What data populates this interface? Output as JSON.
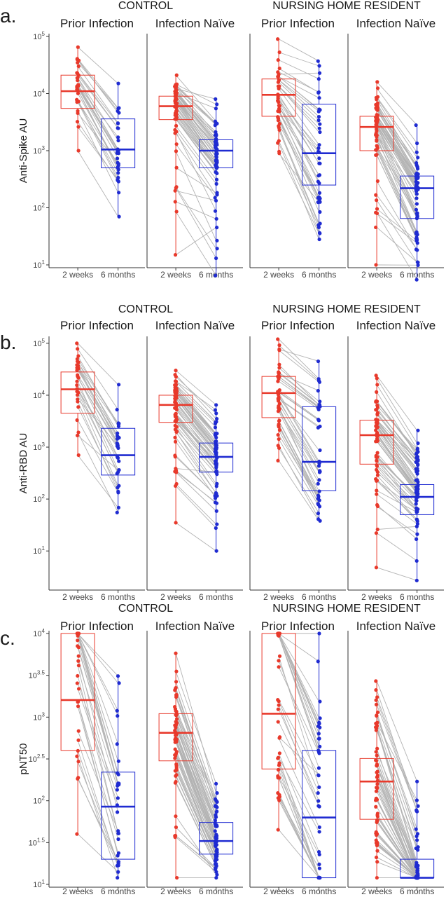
{
  "chart_data": [
    {
      "type": "box-dot-paired",
      "panel_label": "a.",
      "ylabel": "Anti-Spike AU",
      "yscale": "log10",
      "ylim": [
        10,
        100000
      ],
      "yticks": [
        "10^1",
        "10^2",
        "10^3",
        "10^4",
        "10^5"
      ],
      "group_labels": [
        "CONTROL",
        "NURSING HOME RESIDENT"
      ],
      "facet_labels": [
        "Prior Infection",
        "Infection Naïve",
        "Prior Infection",
        "Infection Naïve"
      ],
      "x_categories": [
        "2 weeks",
        "6 months"
      ],
      "colors": {
        "2 weeks": "#e8392b",
        "6 months": "#1f2bd1",
        "lines": "#b3b3b3"
      },
      "facets": [
        {
          "group": "CONTROL",
          "facet": "Prior Infection",
          "week2": {
            "median": 11000,
            "q1": 5500,
            "q3": 21000,
            "min": 1000,
            "max": 65000,
            "n": 30
          },
          "month6": {
            "median": 1050,
            "q1": 500,
            "q3": 3600,
            "min": 70,
            "max": 15000,
            "n": 30
          }
        },
        {
          "group": "CONTROL",
          "facet": "Infection Naïve",
          "week2": {
            "median": 6000,
            "q1": 3500,
            "q3": 9000,
            "min": 15,
            "max": 21000,
            "n": 60
          },
          "month6": {
            "median": 1000,
            "q1": 500,
            "q3": 1550,
            "min": 6.5,
            "max": 8000,
            "n": 60
          }
        },
        {
          "group": "NURSING HOME RESIDENT",
          "facet": "Prior Infection",
          "week2": {
            "median": 9500,
            "q1": 4000,
            "q3": 18000,
            "min": 900,
            "max": 90000,
            "n": 40
          },
          "month6": {
            "median": 900,
            "q1": 250,
            "q3": 6500,
            "min": 28,
            "max": 37000,
            "n": 40
          }
        },
        {
          "group": "NURSING HOME RESIDENT",
          "facet": "Infection Naïve",
          "week2": {
            "median": 2600,
            "q1": 1000,
            "q3": 4000,
            "min": 10,
            "max": 16000,
            "n": 60
          },
          "month6": {
            "median": 220,
            "q1": 65,
            "q3": 360,
            "min": 5.5,
            "max": 2800,
            "n": 60
          }
        }
      ]
    },
    {
      "type": "box-dot-paired",
      "panel_label": "b.",
      "ylabel": "Anti-RBD AU",
      "yscale": "log10",
      "ylim": [
        2,
        120000
      ],
      "yticks": [
        "10^1",
        "10^2",
        "10^3",
        "10^4",
        "10^5"
      ],
      "group_labels": [
        "CONTROL",
        "NURSING HOME RESIDENT"
      ],
      "facet_labels": [
        "Prior Infection",
        "Infection Naïve",
        "Prior Infection",
        "Infection Naïve"
      ],
      "x_categories": [
        "2 weeks",
        "6 months"
      ],
      "colors": {
        "2 weeks": "#e8392b",
        "6 months": "#1f2bd1",
        "lines": "#b3b3b3"
      },
      "facets": [
        {
          "group": "CONTROL",
          "facet": "Prior Infection",
          "week2": {
            "median": 13000,
            "q1": 4500,
            "q3": 28000,
            "min": 700,
            "max": 100000,
            "n": 30
          },
          "month6": {
            "median": 700,
            "q1": 290,
            "q3": 2300,
            "min": 55,
            "max": 16000,
            "n": 30
          }
        },
        {
          "group": "CONTROL",
          "facet": "Infection Naïve",
          "week2": {
            "median": 6500,
            "q1": 3000,
            "q3": 10000,
            "min": 35,
            "max": 30000,
            "n": 60
          },
          "month6": {
            "median": 650,
            "q1": 330,
            "q3": 1200,
            "min": 10,
            "max": 6500,
            "n": 60
          }
        },
        {
          "group": "NURSING HOME RESIDENT",
          "facet": "Prior Infection",
          "week2": {
            "median": 11000,
            "q1": 3700,
            "q3": 23000,
            "min": 550,
            "max": 120000,
            "n": 40
          },
          "month6": {
            "median": 520,
            "q1": 145,
            "q3": 6000,
            "min": 38,
            "max": 45000,
            "n": 40
          }
        },
        {
          "group": "NURSING HOME RESIDENT",
          "facet": "Infection Naïve",
          "week2": {
            "median": 1700,
            "q1": 470,
            "q3": 3300,
            "min": 4.8,
            "max": 24000,
            "n": 60
          },
          "month6": {
            "median": 110,
            "q1": 50,
            "q3": 190,
            "min": 2.7,
            "max": 2100,
            "n": 60
          }
        }
      ]
    },
    {
      "type": "box-dot-paired",
      "panel_label": "c.",
      "ylabel": "pNT50",
      "yscale": "log10",
      "ylim": [
        10,
        10000
      ],
      "yticks": [
        "10^1",
        "10^1.5",
        "10^2",
        "10^2.5",
        "10^3",
        "10^3.5",
        "10^4"
      ],
      "group_labels": [
        "CONTROL",
        "NURSING HOME RESIDENT"
      ],
      "facet_labels": [
        "Prior Infection",
        "Infection Naïve",
        "Prior Infection",
        "Infection Naïve"
      ],
      "x_categories": [
        "2 weeks",
        "6 months"
      ],
      "colors": {
        "2 weeks": "#e8392b",
        "6 months": "#1f2bd1",
        "lines": "#b3b3b3"
      },
      "facets": [
        {
          "group": "CONTROL",
          "facet": "Prior Infection",
          "week2": {
            "median": 1600,
            "q1": 400,
            "q3": 10000,
            "min": 40,
            "max": 10000,
            "n": 30
          },
          "month6": {
            "median": 85,
            "q1": 20,
            "q3": 220,
            "min": 12,
            "max": 3100,
            "n": 30
          }
        },
        {
          "group": "CONTROL",
          "facet": "Infection Naïve",
          "week2": {
            "median": 650,
            "q1": 300,
            "q3": 1100,
            "min": 12,
            "max": 5800,
            "n": 60
          },
          "month6": {
            "median": 33,
            "q1": 23,
            "q3": 55,
            "min": 12,
            "max": 160,
            "n": 60
          }
        },
        {
          "group": "NURSING HOME RESIDENT",
          "facet": "Prior Infection",
          "week2": {
            "median": 1100,
            "q1": 240,
            "q3": 10000,
            "min": 45,
            "max": 10000,
            "n": 40
          },
          "month6": {
            "median": 63,
            "q1": 12,
            "q3": 400,
            "min": 12,
            "max": 10000,
            "n": 40
          }
        },
        {
          "group": "NURSING HOME RESIDENT",
          "facet": "Infection Naïve",
          "week2": {
            "median": 170,
            "q1": 60,
            "q3": 320,
            "min": 12,
            "max": 2700,
            "n": 60
          },
          "month6": {
            "median": 12,
            "q1": 12,
            "q3": 20,
            "min": 12,
            "max": 170,
            "n": 60
          }
        }
      ]
    }
  ]
}
